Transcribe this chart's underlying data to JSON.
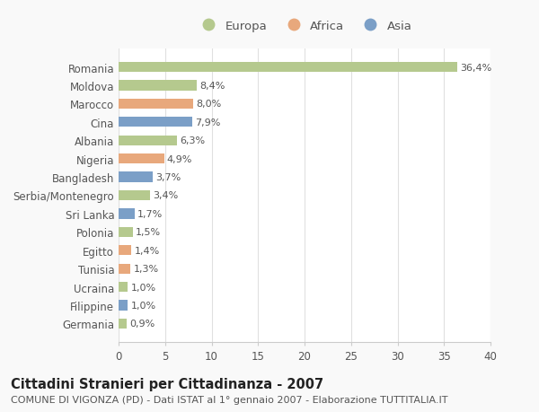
{
  "countries": [
    "Romania",
    "Moldova",
    "Marocco",
    "Cina",
    "Albania",
    "Nigeria",
    "Bangladesh",
    "Serbia/Montenegro",
    "Sri Lanka",
    "Polonia",
    "Egitto",
    "Tunisia",
    "Ucraina",
    "Filippine",
    "Germania"
  ],
  "values": [
    36.4,
    8.4,
    8.0,
    7.9,
    6.3,
    4.9,
    3.7,
    3.4,
    1.7,
    1.5,
    1.4,
    1.3,
    1.0,
    1.0,
    0.9
  ],
  "labels": [
    "36,4%",
    "8,4%",
    "8,0%",
    "7,9%",
    "6,3%",
    "4,9%",
    "3,7%",
    "3,4%",
    "1,7%",
    "1,5%",
    "1,4%",
    "1,3%",
    "1,0%",
    "1,0%",
    "0,9%"
  ],
  "continents": [
    "Europa",
    "Europa",
    "Africa",
    "Asia",
    "Europa",
    "Africa",
    "Asia",
    "Europa",
    "Asia",
    "Europa",
    "Africa",
    "Africa",
    "Europa",
    "Asia",
    "Europa"
  ],
  "colors": {
    "Europa": "#b5c98e",
    "Africa": "#e8a87c",
    "Asia": "#7b9fc7"
  },
  "xlim": [
    0,
    40
  ],
  "xticks": [
    0,
    5,
    10,
    15,
    20,
    25,
    30,
    35,
    40
  ],
  "title": "Cittadini Stranieri per Cittadinanza - 2007",
  "subtitle": "COMUNE DI VIGONZA (PD) - Dati ISTAT al 1° gennaio 2007 - Elaborazione TUTTITALIA.IT",
  "background_color": "#f9f9f9",
  "plot_background": "#ffffff",
  "bar_height": 0.55,
  "title_fontsize": 10.5,
  "subtitle_fontsize": 8,
  "tick_fontsize": 8.5,
  "label_fontsize": 8,
  "legend_fontsize": 9.5
}
